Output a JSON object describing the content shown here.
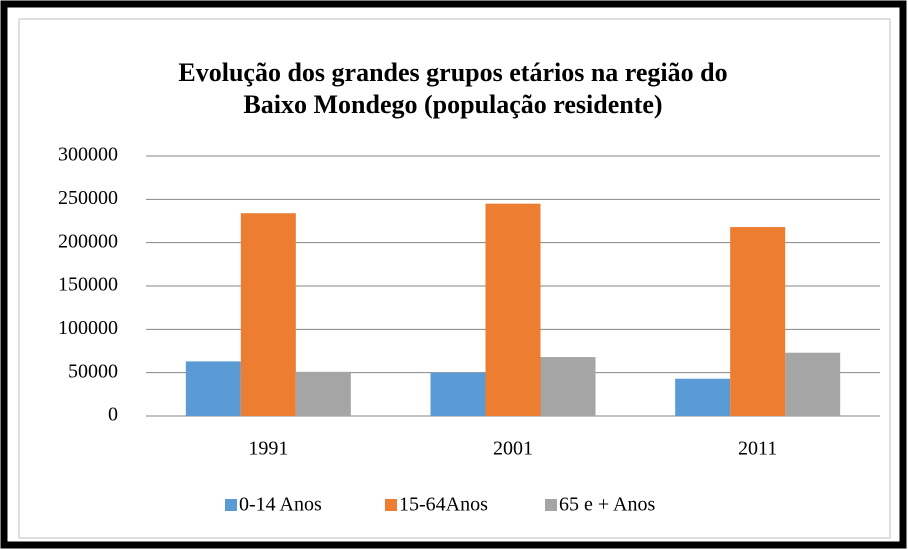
{
  "chart_data": {
    "type": "bar",
    "title": [
      "Evolução dos grandes grupos etários na região do",
      "Baixo Mondego (população residente)"
    ],
    "categories": [
      "1991",
      "2001",
      "2011"
    ],
    "series": [
      {
        "name": "0-14 Anos",
        "color": "#5b9bd5",
        "values": [
          63000,
          50000,
          43000
        ]
      },
      {
        "name": "15-64Anos",
        "color": "#ed7d31",
        "values": [
          234000,
          245000,
          218000
        ]
      },
      {
        "name": "65 e + Anos",
        "color": "#a5a5a5",
        "values": [
          51000,
          68000,
          73000
        ]
      }
    ],
    "ylim": [
      0,
      300000
    ],
    "yticks": [
      0,
      50000,
      100000,
      150000,
      200000,
      250000,
      300000
    ],
    "grid": true,
    "legend": "bottom"
  }
}
